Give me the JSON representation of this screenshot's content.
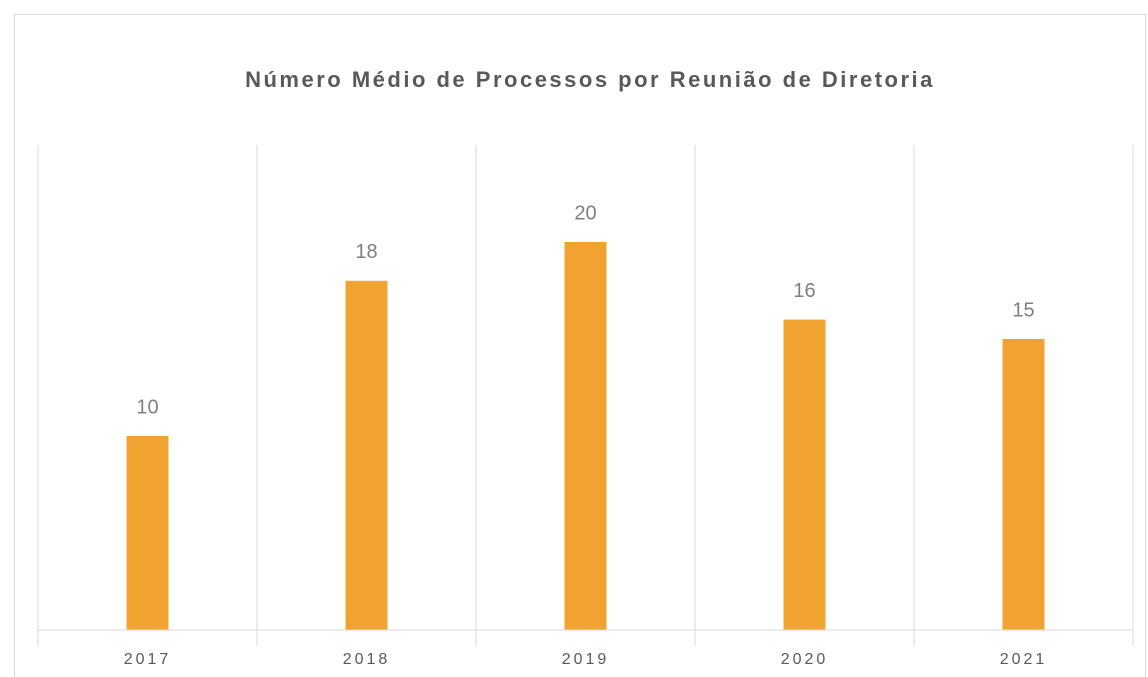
{
  "chart_data": {
    "type": "bar",
    "title": "Número Médio de Processos por Reunião de Diretoria",
    "categories": [
      "2017",
      "2018",
      "2019",
      "2020",
      "2021"
    ],
    "values": [
      10,
      18,
      20,
      16,
      15
    ],
    "color": "#f0a330",
    "ylim": [
      0,
      25
    ],
    "data_labels": true
  }
}
